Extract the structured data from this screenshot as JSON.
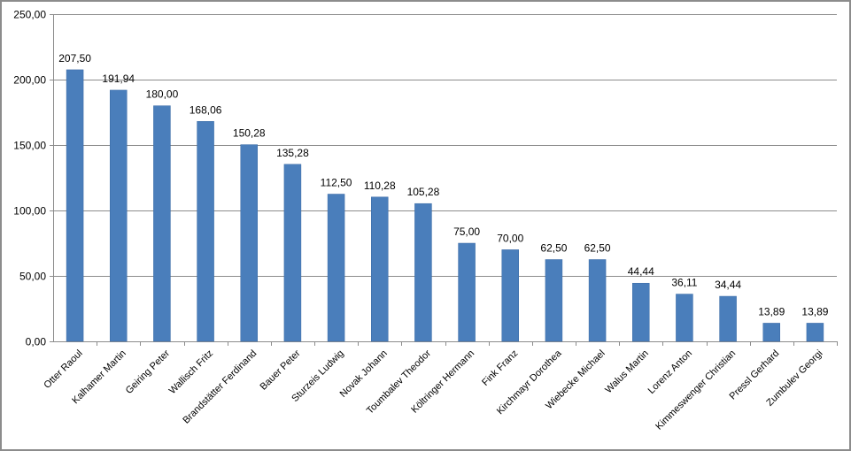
{
  "chart_data": {
    "type": "bar",
    "title": "",
    "xlabel": "",
    "ylabel": "",
    "ylim": [
      0,
      250
    ],
    "yticks": [
      "0,00",
      "50,00",
      "100,00",
      "150,00",
      "200,00",
      "250,00"
    ],
    "ytick_values": [
      0,
      50,
      100,
      150,
      200,
      250
    ],
    "grid": true,
    "legend": "none",
    "bar_color": "#4a7ebb",
    "categories": [
      "Otter Raoul",
      "Kalhamer Martin",
      "Geiring Peter",
      "Wallisch Fritz",
      "Brandstätter Ferdinand",
      "Bauer Peter",
      "Sturzeis Ludwig",
      "Novak Johann",
      "Toumbalev Theodor",
      "Költringer Hermann",
      "Fink Franz",
      "Kirchmayr Dorothea",
      "Wiebecke Michael",
      "Walus Martin",
      "Lorenz Anton",
      "Kimmeswenger Christian",
      "Pressl Gerhard",
      "Zumbulev Georgi"
    ],
    "values": [
      207.5,
      191.94,
      180.0,
      168.06,
      150.28,
      135.28,
      112.5,
      110.28,
      105.28,
      75.0,
      70.0,
      62.5,
      62.5,
      44.44,
      36.11,
      34.44,
      13.89,
      13.89
    ],
    "data_labels": [
      "207,50",
      "191,94",
      "180,00",
      "168,06",
      "150,28",
      "135,28",
      "112,50",
      "110,28",
      "105,28",
      "75,00",
      "70,00",
      "62,50",
      "62,50",
      "44,44",
      "36,11",
      "34,44",
      "13,89",
      "13,89"
    ]
  }
}
